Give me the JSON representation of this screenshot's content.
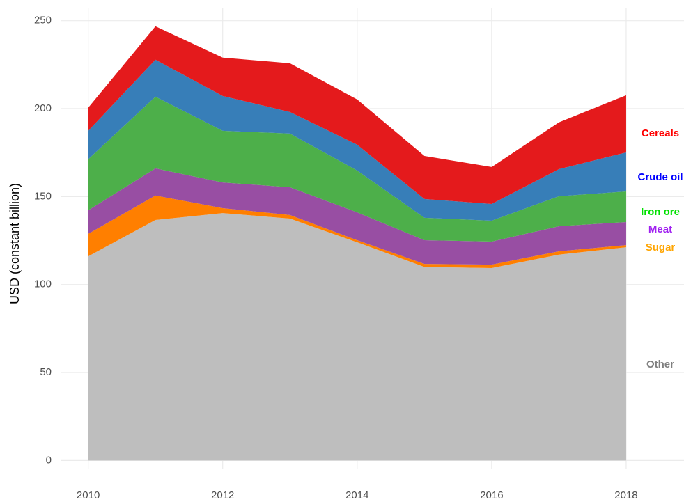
{
  "chart_data": {
    "type": "stacked_area",
    "y_label": "USD (constant billion)",
    "x": [
      2010,
      2011,
      2012,
      2013,
      2014,
      2015,
      2016,
      2017,
      2018
    ],
    "xlim": [
      2009.6,
      2018.86
    ],
    "xticks": [
      2010,
      2012,
      2014,
      2016,
      2018
    ],
    "ylim": [
      -5,
      257
    ],
    "yticks": [
      0,
      50,
      100,
      150,
      200,
      250
    ],
    "grid": true,
    "series": [
      {
        "name": "Other",
        "color": "#bebebe",
        "label_color": "#7f7f7f",
        "values": [
          116,
          136.7,
          140.6,
          137.5,
          124,
          110,
          109.4,
          117,
          121.2
        ]
      },
      {
        "name": "Sugar",
        "color": "#ff7f00",
        "label_color": "#ffa500",
        "values": [
          12.8,
          13.9,
          2.8,
          2.0,
          1.2,
          1.7,
          1.9,
          1.9,
          1.2
        ]
      },
      {
        "name": "Meat",
        "color": "#984ea3",
        "label_color": "#a020f0",
        "values": [
          13.4,
          15.4,
          14.6,
          15.8,
          15.8,
          13.5,
          13.1,
          14.2,
          13.1
        ]
      },
      {
        "name": "Iron ore",
        "color": "#4daf4a",
        "label_color": "#00e000",
        "values": [
          29,
          40.8,
          29.4,
          30.5,
          23.8,
          12.7,
          11.9,
          17.1,
          17.4
        ]
      },
      {
        "name": "Crude oil",
        "color": "#377eb8",
        "label_color": "#0000ff",
        "values": [
          16.2,
          21,
          19.8,
          12.3,
          14.7,
          10.7,
          9.5,
          15.4,
          22.2
        ]
      },
      {
        "name": "Cereals",
        "color": "#e41a1c",
        "label_color": "#ff0000",
        "values": [
          13.1,
          19,
          21.8,
          27.7,
          25.7,
          24.5,
          21,
          26.6,
          32.5
        ]
      }
    ]
  }
}
